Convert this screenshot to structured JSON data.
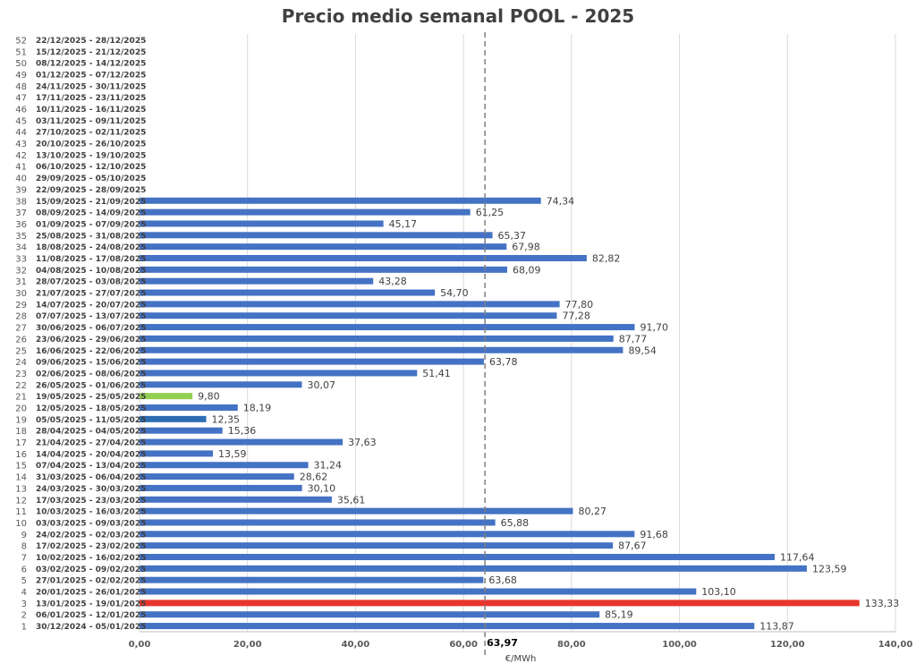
{
  "chart_data": {
    "type": "bar",
    "orientation": "horizontal",
    "title": "Precio medio semanal POOL - 2025",
    "xlabel": "€/MWh",
    "xlim": [
      0,
      140
    ],
    "x_ticks": [
      "0,00",
      "20,00",
      "40,00",
      "60,00",
      "80,00",
      "100,00",
      "120,00",
      "140,00"
    ],
    "grid": "vertical",
    "average": {
      "value": 63.97,
      "label": "63,97"
    },
    "colors": {
      "default": "#4472C4",
      "max": "#E8342A",
      "min": "#92D050",
      "highlight": "#2E6DB4"
    },
    "weeks": [
      {
        "n": "1",
        "range": "30/12/2024 - 05/01/2025",
        "value": 113.87,
        "label": "113,87"
      },
      {
        "n": "2",
        "range": "06/01/2025 - 12/01/2025",
        "value": 85.19,
        "label": "85,19"
      },
      {
        "n": "3",
        "range": "13/01/2025 - 19/01/2025",
        "value": 133.33,
        "label": "133,33",
        "color": "max"
      },
      {
        "n": "4",
        "range": "20/01/2025 - 26/01/2025",
        "value": 103.1,
        "label": "103,10"
      },
      {
        "n": "5",
        "range": "27/01/2025 - 02/02/2025",
        "value": 63.68,
        "label": "63,68"
      },
      {
        "n": "6",
        "range": "03/02/2025 - 09/02/2025",
        "value": 123.59,
        "label": "123,59"
      },
      {
        "n": "7",
        "range": "10/02/2025 - 16/02/2025",
        "value": 117.64,
        "label": "117,64"
      },
      {
        "n": "8",
        "range": "17/02/2025 - 23/02/2025",
        "value": 87.67,
        "label": "87,67"
      },
      {
        "n": "9",
        "range": "24/02/2025 - 02/03/2025",
        "value": 91.68,
        "label": "91,68"
      },
      {
        "n": "10",
        "range": "03/03/2025 - 09/03/2025",
        "value": 65.88,
        "label": "65,88"
      },
      {
        "n": "11",
        "range": "10/03/2025 - 16/03/2025",
        "value": 80.27,
        "label": "80,27"
      },
      {
        "n": "12",
        "range": "17/03/2025 - 23/03/2025",
        "value": 35.61,
        "label": "35,61"
      },
      {
        "n": "13",
        "range": "24/03/2025 - 30/03/2025",
        "value": 30.1,
        "label": "30,10"
      },
      {
        "n": "14",
        "range": "31/03/2025 - 06/04/2025",
        "value": 28.62,
        "label": "28,62"
      },
      {
        "n": "15",
        "range": "07/04/2025 - 13/04/2025",
        "value": 31.24,
        "label": "31,24"
      },
      {
        "n": "16",
        "range": "14/04/2025 - 20/04/2025",
        "value": 13.59,
        "label": "13,59"
      },
      {
        "n": "17",
        "range": "21/04/2025 - 27/04/2025",
        "value": 37.63,
        "label": "37,63"
      },
      {
        "n": "18",
        "range": "28/04/2025 - 04/05/2025",
        "value": 15.36,
        "label": "15,36"
      },
      {
        "n": "19",
        "range": "05/05/2025 - 11/05/2025",
        "value": 12.35,
        "label": "12,35",
        "color": "highlight"
      },
      {
        "n": "20",
        "range": "12/05/2025 - 18/05/2025",
        "value": 18.19,
        "label": "18,19"
      },
      {
        "n": "21",
        "range": "19/05/2025 - 25/05/2025",
        "value": 9.8,
        "label": "9,80",
        "color": "min"
      },
      {
        "n": "22",
        "range": "26/05/2025 - 01/06/2025",
        "value": 30.07,
        "label": "30,07"
      },
      {
        "n": "23",
        "range": "02/06/2025 - 08/06/2025",
        "value": 51.41,
        "label": "51,41"
      },
      {
        "n": "24",
        "range": "09/06/2025 - 15/06/2025",
        "value": 63.78,
        "label": "63,78"
      },
      {
        "n": "25",
        "range": "16/06/2025 - 22/06/2025",
        "value": 89.54,
        "label": "89,54"
      },
      {
        "n": "26",
        "range": "23/06/2025 - 29/06/2025",
        "value": 87.77,
        "label": "87,77"
      },
      {
        "n": "27",
        "range": "30/06/2025 - 06/07/2025",
        "value": 91.7,
        "label": "91,70"
      },
      {
        "n": "28",
        "range": "07/07/2025 - 13/07/2025",
        "value": 77.28,
        "label": "77,28"
      },
      {
        "n": "29",
        "range": "14/07/2025 - 20/07/2025",
        "value": 77.8,
        "label": "77,80"
      },
      {
        "n": "30",
        "range": "21/07/2025 - 27/07/2025",
        "value": 54.7,
        "label": "54,70"
      },
      {
        "n": "31",
        "range": "28/07/2025 - 03/08/2025",
        "value": 43.28,
        "label": "43,28"
      },
      {
        "n": "32",
        "range": "04/08/2025 - 10/08/2025",
        "value": 68.09,
        "label": "68,09"
      },
      {
        "n": "33",
        "range": "11/08/2025 - 17/08/2025",
        "value": 82.82,
        "label": "82,82"
      },
      {
        "n": "34",
        "range": "18/08/2025 - 24/08/2025",
        "value": 67.98,
        "label": "67,98"
      },
      {
        "n": "35",
        "range": "25/08/2025 - 31/08/2025",
        "value": 65.37,
        "label": "65,37"
      },
      {
        "n": "36",
        "range": "01/09/2025 - 07/09/2025",
        "value": 45.17,
        "label": "45,17"
      },
      {
        "n": "37",
        "range": "08/09/2025 - 14/09/2025",
        "value": 61.25,
        "label": "61,25"
      },
      {
        "n": "38",
        "range": "15/09/2025 - 21/09/2025",
        "value": 74.34,
        "label": "74,34"
      },
      {
        "n": "39",
        "range": "22/09/2025 - 28/09/2025",
        "value": null
      },
      {
        "n": "40",
        "range": "29/09/2025 - 05/10/2025",
        "value": null
      },
      {
        "n": "41",
        "range": "06/10/2025 - 12/10/2025",
        "value": null
      },
      {
        "n": "42",
        "range": "13/10/2025 - 19/10/2025",
        "value": null
      },
      {
        "n": "43",
        "range": "20/10/2025 - 26/10/2025",
        "value": null
      },
      {
        "n": "44",
        "range": "27/10/2025 - 02/11/2025",
        "value": null
      },
      {
        "n": "45",
        "range": "03/11/2025 - 09/11/2025",
        "value": null
      },
      {
        "n": "46",
        "range": "10/11/2025 - 16/11/2025",
        "value": null
      },
      {
        "n": "47",
        "range": "17/11/2025 - 23/11/2025",
        "value": null
      },
      {
        "n": "48",
        "range": "24/11/2025 - 30/11/2025",
        "value": null
      },
      {
        "n": "49",
        "range": "01/12/2025 - 07/12/2025",
        "value": null
      },
      {
        "n": "50",
        "range": "08/12/2025 - 14/12/2025",
        "value": null
      },
      {
        "n": "51",
        "range": "15/12/2025 - 21/12/2025",
        "value": null
      },
      {
        "n": "52",
        "range": "22/12/2025 - 28/12/2025",
        "value": null
      }
    ]
  }
}
